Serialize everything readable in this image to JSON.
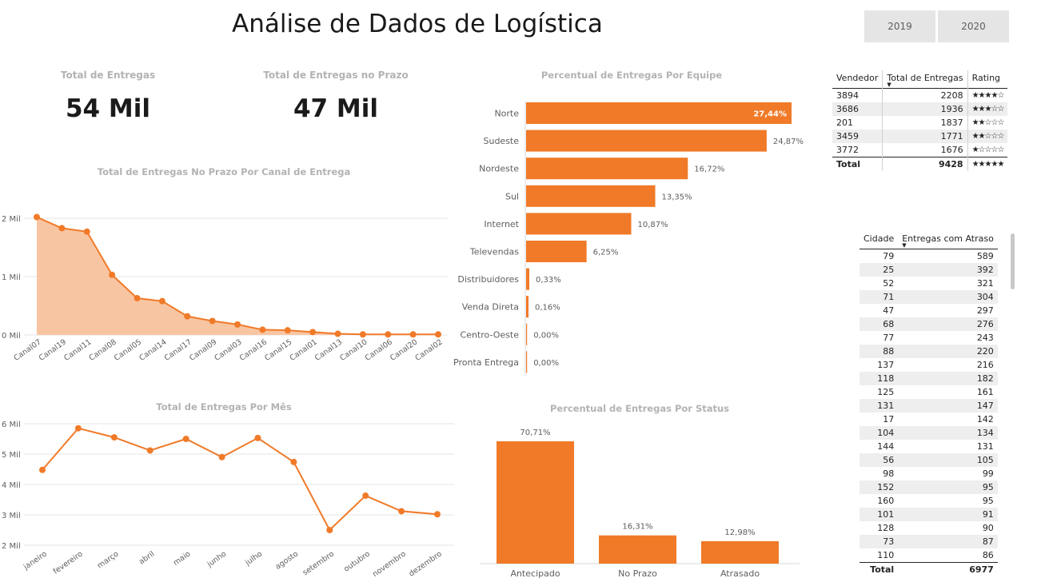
{
  "header": {
    "title": "Análise de Dados de Logística",
    "year_buttons": [
      "2019",
      "2020"
    ]
  },
  "kpis": [
    {
      "title": "Total de Entregas",
      "value": "54 Mil"
    },
    {
      "title": "Total de Entregas no Prazo",
      "value": "47 Mil"
    }
  ],
  "colors": {
    "accent": "#f07a28",
    "area_fill": "#f8c5a3",
    "grid": "#e6e6e6",
    "muted": "#b3b3b3"
  },
  "chart_data": [
    {
      "id": "canal",
      "type": "area",
      "title": "Total de Entregas No Prazo Por Canal de Entrega",
      "categories": [
        "Canal07",
        "Canal19",
        "Canal11",
        "Canal08",
        "Canal05",
        "Canal14",
        "Canal17",
        "Canal09",
        "Canal03",
        "Canal16",
        "Canal15",
        "Canal01",
        "Canal13",
        "Canal10",
        "Canal06",
        "Canal20",
        "Canal02"
      ],
      "values": [
        2.02,
        1.83,
        1.77,
        1.03,
        0.63,
        0.58,
        0.32,
        0.24,
        0.18,
        0.09,
        0.08,
        0.05,
        0.02,
        0.01,
        0.01,
        0.01,
        0.01
      ],
      "ylim": [
        0,
        2
      ],
      "yticks": [
        {
          "v": 0,
          "label": "0 Mil"
        },
        {
          "v": 1,
          "label": "1 Mil"
        },
        {
          "v": 2,
          "label": "2 Mil"
        }
      ]
    },
    {
      "id": "mes",
      "type": "line",
      "title": "Total de Entregas Por Mês",
      "categories": [
        "janeiro",
        "fevereiro",
        "março",
        "abril",
        "maio",
        "junho",
        "julho",
        "agosto",
        "setembro",
        "outubro",
        "novembro",
        "dezembro"
      ],
      "values": [
        4.48,
        5.85,
        5.55,
        5.12,
        5.5,
        4.9,
        5.53,
        4.74,
        2.5,
        3.63,
        3.12,
        3.02
      ],
      "ylim": [
        2,
        6
      ],
      "yticks": [
        {
          "v": 2,
          "label": "2 Mil"
        },
        {
          "v": 3,
          "label": "3 Mil"
        },
        {
          "v": 4,
          "label": "4 Mil"
        },
        {
          "v": 5,
          "label": "5 Mil"
        },
        {
          "v": 6,
          "label": "6 Mil"
        }
      ]
    },
    {
      "id": "equipe",
      "type": "bar",
      "orientation": "horizontal",
      "title": "Percentual de Entregas Por Equipe",
      "categories": [
        "Norte",
        "Sudeste",
        "Nordeste",
        "Sul",
        "Internet",
        "Televendas",
        "Distribuidores",
        "Venda Direta",
        "Centro-Oeste",
        "Pronta Entrega"
      ],
      "values": [
        27.44,
        24.87,
        16.72,
        13.35,
        10.87,
        6.25,
        0.33,
        0.16,
        0.0,
        0.0
      ],
      "labels": [
        "27,44%",
        "24,87%",
        "16,72%",
        "13,35%",
        "10,87%",
        "6,25%",
        "0,33%",
        "0,16%",
        "0,00%",
        "0,00%"
      ]
    },
    {
      "id": "status",
      "type": "bar",
      "title": "Percentual de Entregas Por Status",
      "categories": [
        "Antecipado",
        "No Prazo",
        "Atrasado"
      ],
      "values": [
        70.71,
        16.31,
        12.98
      ],
      "labels": [
        "70,71%",
        "16,31%",
        "12,98%"
      ]
    }
  ],
  "vendor_table": {
    "headers": [
      "Vendedor",
      "Total de Entregas",
      "Rating"
    ],
    "rows": [
      [
        "3894",
        "2208",
        "★★★★☆"
      ],
      [
        "3686",
        "1936",
        "★★★☆☆"
      ],
      [
        "201",
        "1837",
        "★★☆☆☆"
      ],
      [
        "3459",
        "1771",
        "★★☆☆☆"
      ],
      [
        "3772",
        "1676",
        "★☆☆☆☆"
      ]
    ],
    "total": [
      "Total",
      "9428",
      "★★★★★"
    ]
  },
  "city_table": {
    "headers": [
      "Cidade",
      "Entregas com Atraso"
    ],
    "rows": [
      [
        "79",
        "589"
      ],
      [
        "25",
        "392"
      ],
      [
        "52",
        "321"
      ],
      [
        "71",
        "304"
      ],
      [
        "47",
        "297"
      ],
      [
        "68",
        "276"
      ],
      [
        "77",
        "243"
      ],
      [
        "88",
        "220"
      ],
      [
        "137",
        "216"
      ],
      [
        "118",
        "182"
      ],
      [
        "125",
        "161"
      ],
      [
        "131",
        "147"
      ],
      [
        "17",
        "142"
      ],
      [
        "104",
        "134"
      ],
      [
        "144",
        "131"
      ],
      [
        "56",
        "105"
      ],
      [
        "98",
        "99"
      ],
      [
        "152",
        "95"
      ],
      [
        "160",
        "95"
      ],
      [
        "101",
        "91"
      ],
      [
        "128",
        "90"
      ],
      [
        "73",
        "87"
      ],
      [
        "110",
        "86"
      ]
    ],
    "total": [
      "Total",
      "6977"
    ]
  }
}
